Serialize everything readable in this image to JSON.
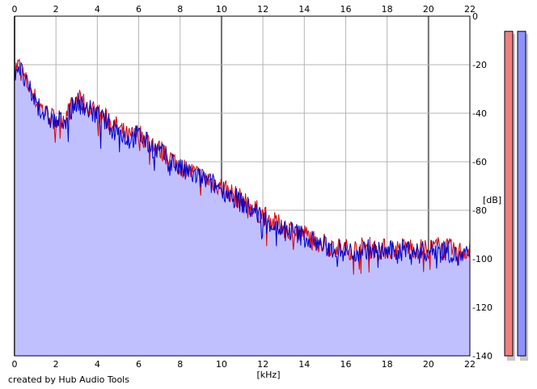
{
  "credit": "created by Hub Audio Tools",
  "colors": {
    "channel_a": "#e00000",
    "channel_b": "#0000c8",
    "fill": "#c0c0ff",
    "grid": "#b4b4b4",
    "major_grid": "#707070",
    "meter_a": "#f08080",
    "meter_b": "#9090ff"
  },
  "chart_data": {
    "type": "line",
    "xlabel": "[kHz]",
    "ylabel": "[dB]",
    "xlim": [
      0,
      22
    ],
    "ylim": [
      -140,
      0
    ],
    "x_ticks": [
      "0",
      "2",
      "4",
      "6",
      "8",
      "10",
      "12",
      "14",
      "16",
      "18",
      "20",
      "22"
    ],
    "y_ticks": [
      "0",
      "-20",
      "-40",
      "-60",
      "-80",
      "-100",
      "-120",
      "-140"
    ],
    "grid": true,
    "x_major_lines": [
      0,
      10,
      20
    ],
    "x": [
      0,
      0.2,
      0.5,
      1,
      1.5,
      2,
      2.5,
      3,
      3.5,
      4,
      4.5,
      5,
      5.5,
      6,
      6.5,
      7,
      7.5,
      8,
      8.5,
      9,
      9.5,
      10,
      10.5,
      11,
      11.5,
      12,
      12.5,
      13,
      13.5,
      14,
      14.5,
      15,
      15.5,
      16,
      16.5,
      17,
      17.5,
      18,
      18.5,
      19,
      19.5,
      20,
      20.5,
      21,
      21.5,
      22
    ],
    "series": [
      {
        "values": [
          -22,
          -20,
          -26,
          -34,
          -40,
          -43,
          -41,
          -34,
          -37,
          -40,
          -43,
          -46,
          -50,
          -48,
          -52,
          -55,
          -58,
          -62,
          -64,
          -66,
          -68,
          -70,
          -73,
          -76,
          -79,
          -82,
          -85,
          -87,
          -88,
          -90,
          -92,
          -94,
          -95,
          -96,
          -96,
          -95,
          -96,
          -96,
          -96,
          -95,
          -96,
          -96,
          -95,
          -96,
          -97,
          -96
        ]
      },
      {
        "values": [
          -23,
          -20,
          -27,
          -35,
          -41,
          -44,
          -42,
          -35,
          -38,
          -41,
          -44,
          -47,
          -51,
          -49,
          -53,
          -56,
          -59,
          -63,
          -65,
          -67,
          -69,
          -71,
          -74,
          -77,
          -80,
          -83,
          -86,
          -88,
          -89,
          -91,
          -93,
          -95,
          -96,
          -97,
          -97,
          -96,
          -97,
          -97,
          -97,
          -96,
          -97,
          -97,
          -96,
          -97,
          -100,
          -98
        ]
      }
    ],
    "meters": {
      "ylim": [
        -140,
        0
      ],
      "values": [
        -3,
        -3
      ]
    }
  }
}
